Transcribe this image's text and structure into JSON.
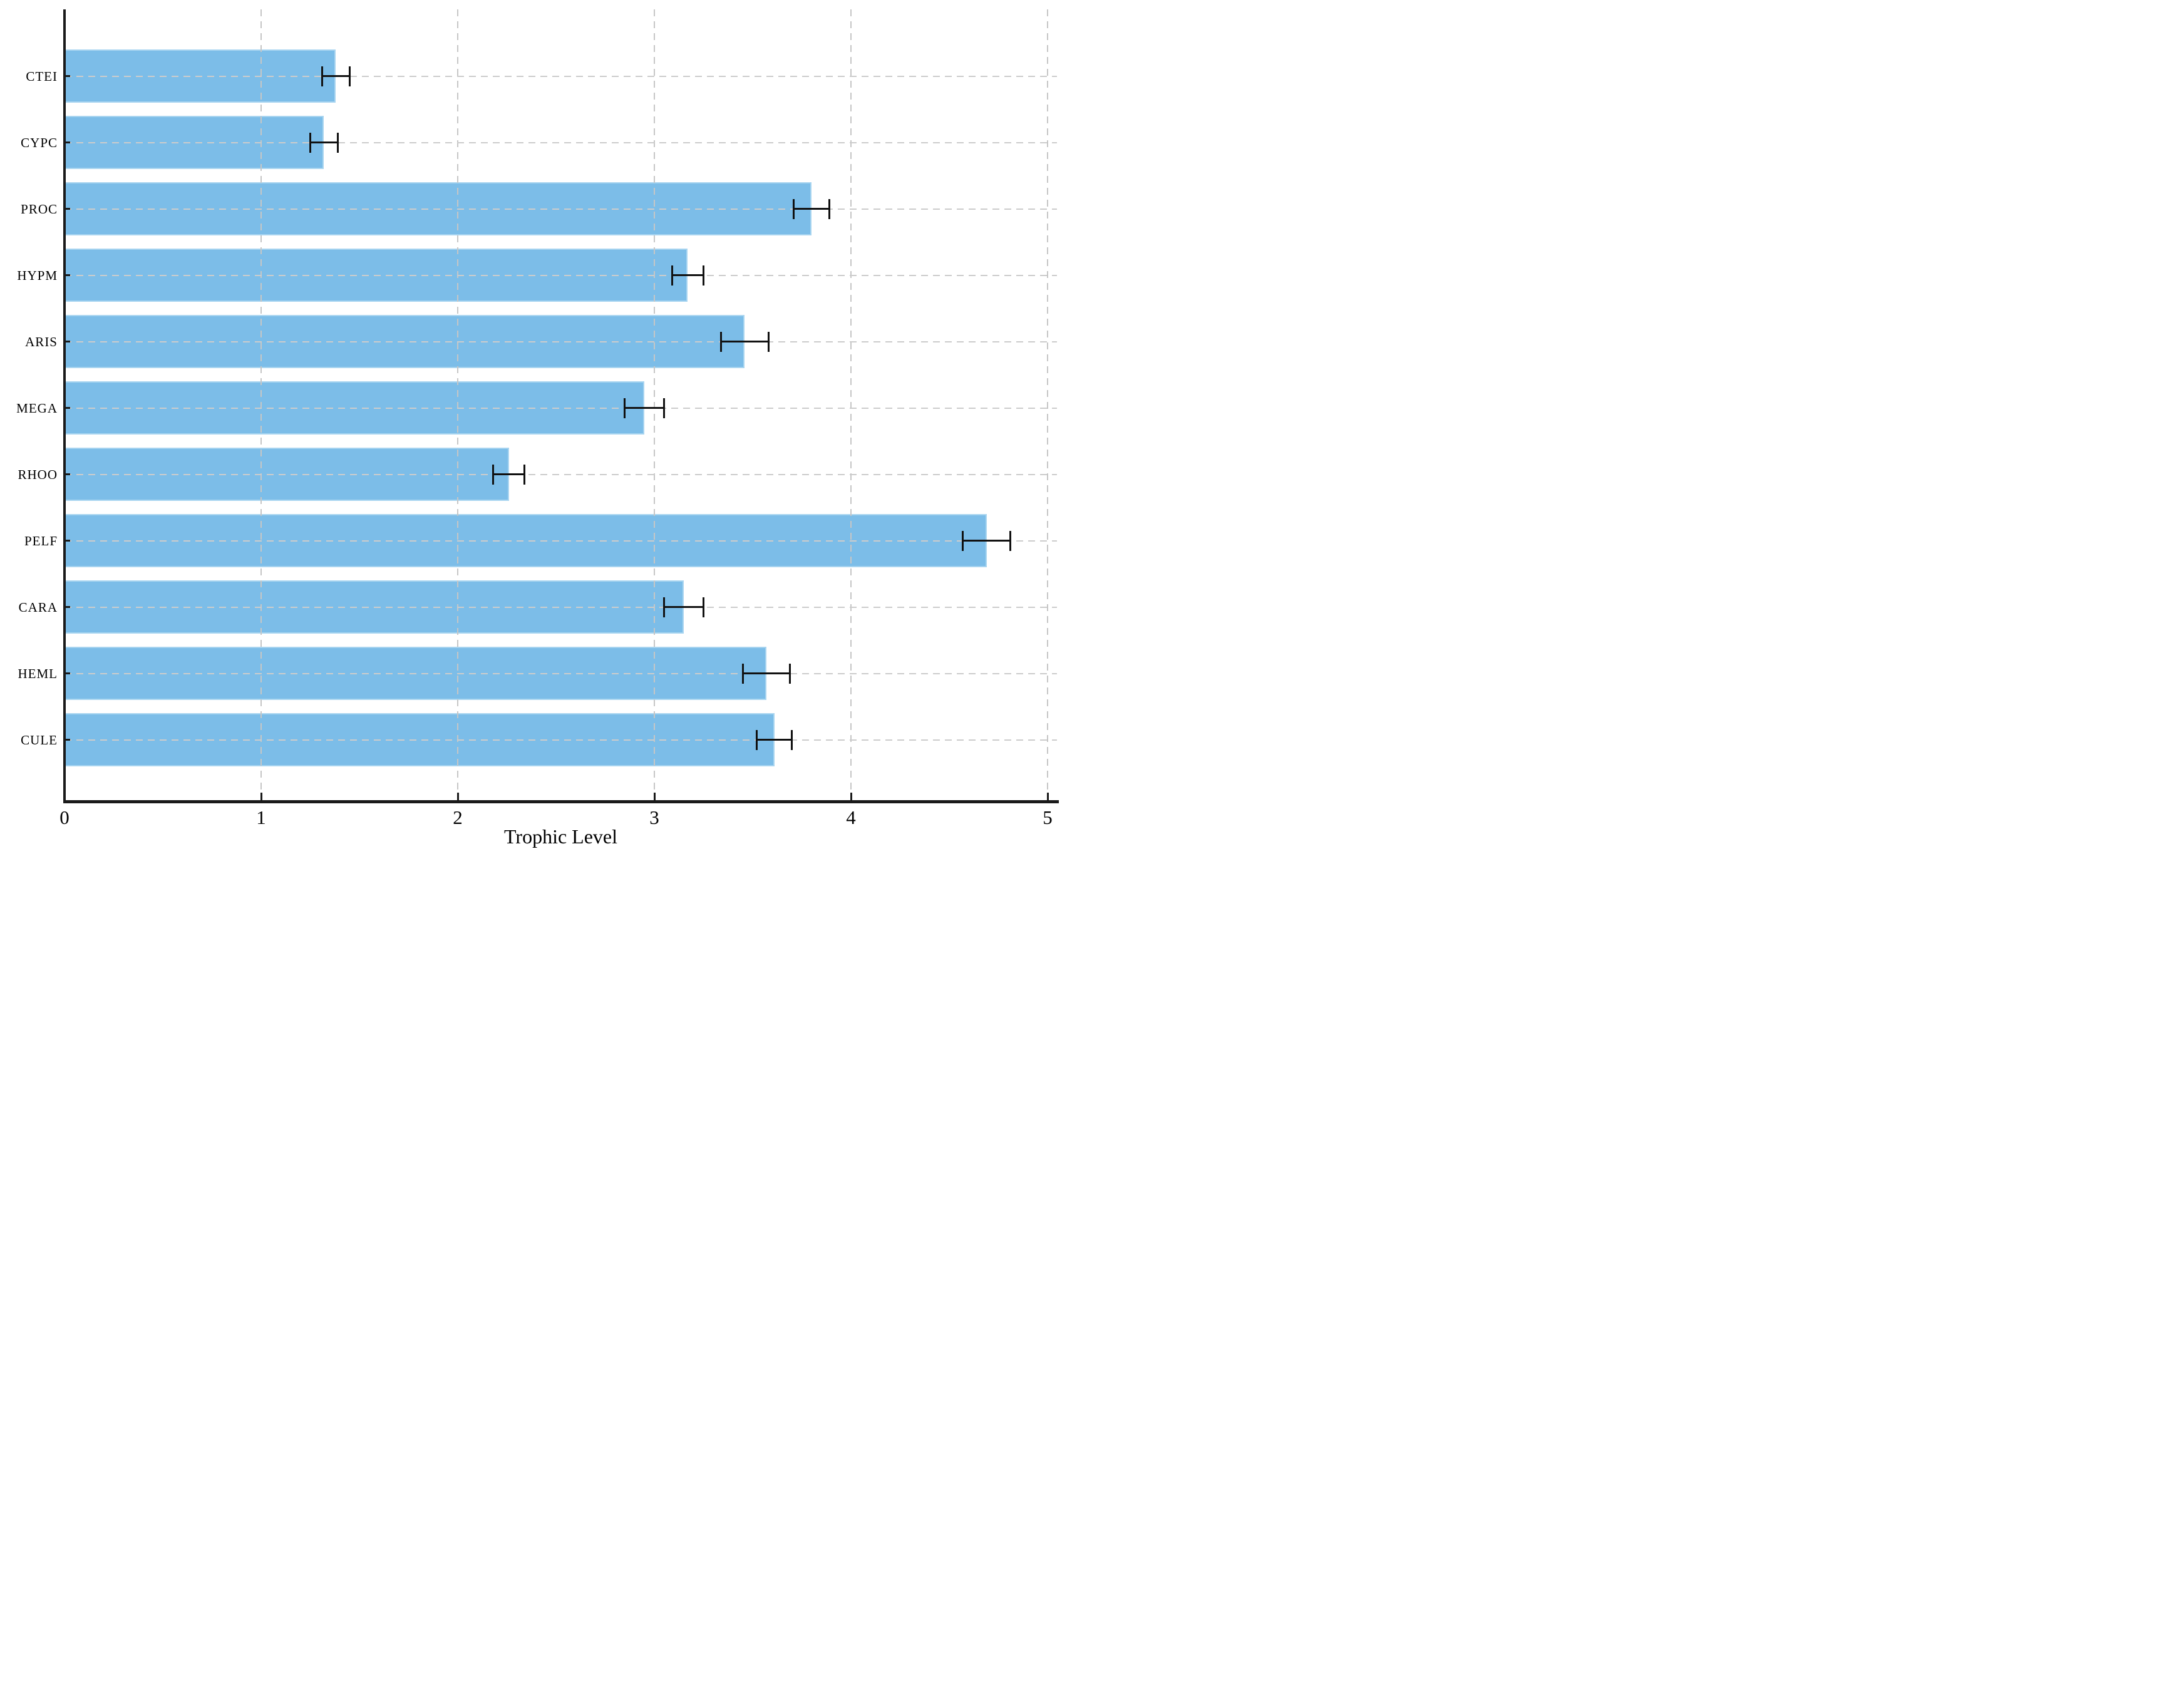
{
  "figure": {
    "background": "#ffffff"
  },
  "chart_data": {
    "type": "bar",
    "orientation": "horizontal",
    "title": "",
    "xlabel": "Trophic Level",
    "ylabel": "",
    "xlim": [
      0,
      5
    ],
    "xticks": [
      0,
      1,
      2,
      3,
      4,
      5
    ],
    "grid": "dashed light-gray gridlines on both axes, drawn over bars",
    "legend_position": "none",
    "bar_color": "#7cbde8",
    "bar_edge_color": "#a9d5f0",
    "error_bar_color": "#111111",
    "axis_color": "#1a1a1a",
    "gridline_color": "#c6c6c6",
    "categories": [
      "CTEI",
      "CYPC",
      "PROC",
      "HYPM",
      "ARIS",
      "MEGA",
      "RHOO",
      "PELF",
      "CARA",
      "HEML",
      "CULE"
    ],
    "values": [
      1.38,
      1.32,
      3.8,
      3.17,
      3.46,
      2.95,
      2.26,
      4.69,
      3.15,
      3.57,
      3.61
    ],
    "errors": [
      0.07,
      0.07,
      0.09,
      0.08,
      0.12,
      0.1,
      0.08,
      0.12,
      0.1,
      0.12,
      0.09
    ]
  }
}
